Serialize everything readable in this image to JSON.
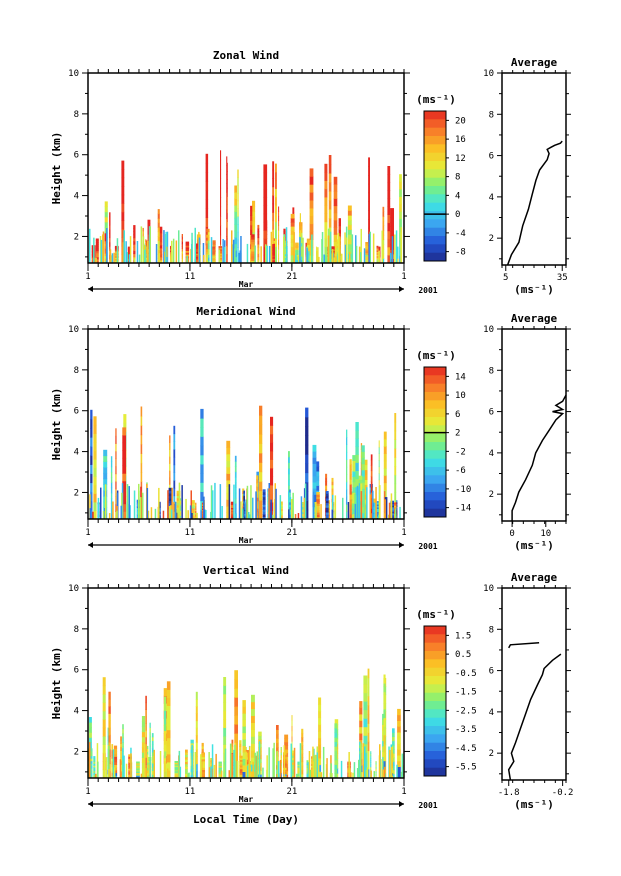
{
  "figure": {
    "xlabel": "Local Time (Day)",
    "month_label": "Mar",
    "year_label": "2001",
    "x_tick_labels": [
      "1",
      "11",
      "21",
      "1"
    ],
    "y_tick_labels": [
      "2",
      "4",
      "6",
      "8",
      "10"
    ],
    "colorbar_unit": "(ms⁻¹)",
    "profile_title": "Average"
  },
  "chart_data": [
    {
      "type": "heatmap",
      "title": "Zonal Wind",
      "ylabel": "Height (km)",
      "xlabel": "Local Time (Day)",
      "x_range_days": [
        1,
        32
      ],
      "ylim": [
        0.7,
        10
      ],
      "colorbar": {
        "unit": "(ms⁻¹)",
        "range": [
          -10,
          22
        ],
        "ticks": [
          "20",
          "16",
          "12",
          "8",
          "4",
          "0",
          "-4",
          "-8"
        ],
        "zero_line": 0
      },
      "profile": {
        "title": "Average",
        "xlabel": "(ms⁻¹)",
        "xlim": [
          3,
          37
        ],
        "xticks": [
          "5",
          "35"
        ],
        "ylim": [
          0.7,
          10
        ],
        "points": [
          [
            6,
            0.7
          ],
          [
            8,
            1.2
          ],
          [
            12,
            1.8
          ],
          [
            14,
            2.6
          ],
          [
            17,
            3.4
          ],
          [
            19,
            4.1
          ],
          [
            21,
            4.8
          ],
          [
            23,
            5.3
          ],
          [
            27,
            5.8
          ],
          [
            28,
            6.1
          ],
          [
            27,
            6.3
          ],
          [
            29,
            6.4
          ],
          [
            31,
            6.5
          ],
          [
            34,
            6.6
          ],
          [
            35,
            6.7
          ]
        ]
      }
    },
    {
      "type": "heatmap",
      "title": "Meridional Wind",
      "ylabel": "Height (km)",
      "xlabel": "Local Time (Day)",
      "x_range_days": [
        1,
        32
      ],
      "ylim": [
        0.7,
        10
      ],
      "colorbar": {
        "unit": "(ms⁻¹)",
        "range": [
          -16,
          16
        ],
        "ticks": [
          "14",
          "10",
          "6",
          "2",
          "-2",
          "-6",
          "-10",
          "-14"
        ],
        "zero_line": 2
      },
      "profile": {
        "title": "Average",
        "xlabel": "(ms⁻¹)",
        "xlim": [
          -3,
          16
        ],
        "xticks": [
          "0",
          "10"
        ],
        "ylim": [
          0.7,
          10
        ],
        "points": [
          [
            0,
            0.7
          ],
          [
            0,
            1.2
          ],
          [
            1,
            1.6
          ],
          [
            2,
            2.1
          ],
          [
            4,
            2.7
          ],
          [
            6,
            3.4
          ],
          [
            7,
            4.0
          ],
          [
            9,
            4.6
          ],
          [
            11,
            5.1
          ],
          [
            13,
            5.6
          ],
          [
            15,
            5.9
          ],
          [
            12,
            6.0
          ],
          [
            15,
            6.1
          ],
          [
            13,
            6.3
          ],
          [
            15,
            6.5
          ],
          [
            16,
            6.8
          ]
        ]
      }
    },
    {
      "type": "heatmap",
      "title": "Vertical Wind",
      "ylabel": "Height (km)",
      "xlabel": "Local Time (Day)",
      "x_range_days": [
        1,
        32
      ],
      "ylim": [
        0.7,
        10
      ],
      "colorbar": {
        "unit": "(ms⁻¹)",
        "range": [
          -6.5,
          2.5
        ],
        "ticks": [
          "1.5",
          "0.5",
          "-0.5",
          "-1.5",
          "-2.5",
          "-3.5",
          "-4.5",
          "-5.5"
        ],
        "zero_line": null
      },
      "profile": {
        "title": "Average",
        "xlabel": "(ms⁻¹)",
        "xlim": [
          -2.0,
          -0.1
        ],
        "xticks": [
          "-1.8",
          "-0.2"
        ],
        "ylim": [
          0.7,
          10
        ],
        "points": [
          [
            -1.75,
            0.7
          ],
          [
            -1.8,
            1.2
          ],
          [
            -1.65,
            1.6
          ],
          [
            -1.72,
            2.0
          ],
          [
            -1.6,
            2.5
          ],
          [
            -1.45,
            3.2
          ],
          [
            -1.3,
            3.9
          ],
          [
            -1.15,
            4.6
          ],
          [
            -0.95,
            5.3
          ],
          [
            -0.8,
            5.8
          ],
          [
            -0.75,
            6.1
          ],
          [
            -0.5,
            6.5
          ],
          [
            -0.25,
            6.8
          ]
        ],
        "points2": [
          [
            -1.8,
            7.1
          ],
          [
            -1.75,
            7.25
          ],
          [
            -0.9,
            7.35
          ]
        ]
      }
    }
  ]
}
